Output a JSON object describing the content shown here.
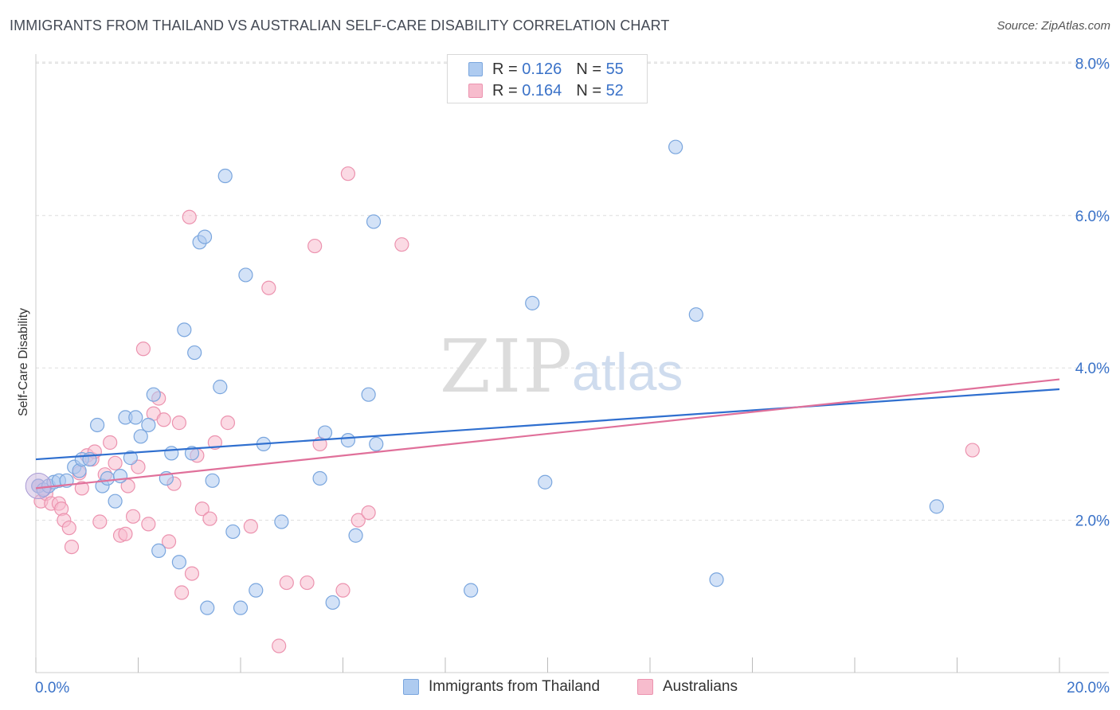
{
  "title": "IMMIGRANTS FROM THAILAND VS AUSTRALIAN SELF-CARE DISABILITY CORRELATION CHART",
  "source": "Source: ZipAtlas.com",
  "watermark": {
    "zip": "ZIP",
    "atlas": "atlas"
  },
  "legend_top": [
    {
      "r_label": "R =",
      "r_value": "0.126",
      "n_label": "N =",
      "n_value": "55"
    },
    {
      "r_label": "R =",
      "r_value": "0.164",
      "n_label": "N =",
      "n_value": "52"
    }
  ],
  "legend_bottom": [
    "Immigrants from Thailand",
    "Australians"
  ],
  "colors": {
    "blue_fill": "#aecbf0",
    "blue_stroke": "#7aa6de",
    "blue_line": "#2f6fcf",
    "pink_fill": "#f7bccd",
    "pink_stroke": "#ec93af",
    "pink_line": "#e0709a",
    "tick_text": "#3a72c8",
    "grid": "#dddddd"
  },
  "chart_data": {
    "type": "scatter",
    "title": "IMMIGRANTS FROM THAILAND VS AUSTRALIAN SELF-CARE DISABILITY CORRELATION CHART",
    "xlabel": "",
    "ylabel": "Self-Care Disability",
    "xlim": [
      0,
      20
    ],
    "ylim": [
      0,
      8.3
    ],
    "x_tick_labels": [
      "0.0%",
      "20.0%"
    ],
    "y_ticks": [
      2,
      4,
      6,
      8
    ],
    "y_tick_labels": [
      "2.0%",
      "4.0%",
      "6.0%",
      "8.0%"
    ],
    "grid": "horizontal dashed",
    "legend_placement": "top-center",
    "series": [
      {
        "name": "Immigrants from Thailand",
        "color": "#aecbf0",
        "trend": {
          "x": [
            0,
            20
          ],
          "y": [
            2.8,
            3.72
          ]
        },
        "points": [
          [
            0.05,
            2.45
          ],
          [
            0.15,
            2.4
          ],
          [
            0.25,
            2.45
          ],
          [
            0.35,
            2.5
          ],
          [
            0.45,
            2.52
          ],
          [
            0.6,
            2.52
          ],
          [
            0.75,
            2.7
          ],
          [
            0.85,
            2.65
          ],
          [
            0.9,
            2.8
          ],
          [
            1.05,
            2.8
          ],
          [
            1.2,
            3.25
          ],
          [
            1.3,
            2.45
          ],
          [
            1.4,
            2.55
          ],
          [
            1.55,
            2.25
          ],
          [
            1.65,
            2.58
          ],
          [
            1.75,
            3.35
          ],
          [
            1.85,
            2.82
          ],
          [
            1.95,
            3.35
          ],
          [
            2.05,
            3.1
          ],
          [
            2.2,
            3.25
          ],
          [
            2.3,
            3.65
          ],
          [
            2.4,
            1.6
          ],
          [
            2.55,
            2.55
          ],
          [
            2.65,
            2.88
          ],
          [
            2.8,
            1.45
          ],
          [
            2.9,
            4.5
          ],
          [
            3.05,
            2.88
          ],
          [
            3.1,
            4.2
          ],
          [
            3.2,
            5.65
          ],
          [
            3.3,
            5.72
          ],
          [
            3.35,
            0.85
          ],
          [
            3.45,
            2.52
          ],
          [
            3.6,
            3.75
          ],
          [
            3.7,
            6.52
          ],
          [
            3.85,
            1.85
          ],
          [
            4.0,
            0.85
          ],
          [
            4.1,
            5.22
          ],
          [
            4.3,
            1.08
          ],
          [
            4.45,
            3.0
          ],
          [
            4.8,
            1.98
          ],
          [
            5.55,
            2.55
          ],
          [
            5.65,
            3.15
          ],
          [
            5.8,
            0.92
          ],
          [
            6.1,
            3.05
          ],
          [
            6.25,
            1.8
          ],
          [
            6.5,
            3.65
          ],
          [
            6.6,
            5.92
          ],
          [
            6.65,
            3.0
          ],
          [
            8.5,
            1.08
          ],
          [
            9.7,
            4.85
          ],
          [
            9.95,
            2.5
          ],
          [
            12.5,
            6.9
          ],
          [
            12.9,
            4.7
          ],
          [
            13.3,
            1.22
          ],
          [
            17.6,
            2.18
          ]
        ]
      },
      {
        "name": "Australians",
        "color": "#f7bccd",
        "trend": {
          "x": [
            0,
            20
          ],
          "y": [
            2.42,
            3.85
          ]
        },
        "points": [
          [
            0.05,
            2.45
          ],
          [
            0.1,
            2.25
          ],
          [
            0.2,
            2.35
          ],
          [
            0.3,
            2.22
          ],
          [
            0.45,
            2.22
          ],
          [
            0.5,
            2.15
          ],
          [
            0.55,
            2.0
          ],
          [
            0.65,
            1.9
          ],
          [
            0.7,
            1.65
          ],
          [
            0.85,
            2.62
          ],
          [
            0.9,
            2.42
          ],
          [
            1.0,
            2.85
          ],
          [
            1.1,
            2.8
          ],
          [
            1.15,
            2.9
          ],
          [
            1.25,
            1.98
          ],
          [
            1.35,
            2.6
          ],
          [
            1.45,
            3.02
          ],
          [
            1.55,
            2.75
          ],
          [
            1.65,
            1.8
          ],
          [
            1.75,
            1.82
          ],
          [
            1.8,
            2.45
          ],
          [
            1.9,
            2.05
          ],
          [
            2.0,
            2.7
          ],
          [
            2.1,
            4.25
          ],
          [
            2.2,
            1.95
          ],
          [
            2.3,
            3.4
          ],
          [
            2.4,
            3.6
          ],
          [
            2.5,
            3.32
          ],
          [
            2.6,
            1.72
          ],
          [
            2.7,
            2.48
          ],
          [
            2.8,
            3.28
          ],
          [
            2.85,
            1.05
          ],
          [
            3.0,
            5.98
          ],
          [
            3.05,
            1.3
          ],
          [
            3.15,
            2.85
          ],
          [
            3.25,
            2.15
          ],
          [
            3.4,
            2.02
          ],
          [
            3.5,
            3.02
          ],
          [
            3.75,
            3.28
          ],
          [
            4.2,
            1.92
          ],
          [
            4.55,
            5.05
          ],
          [
            4.75,
            0.35
          ],
          [
            4.9,
            1.18
          ],
          [
            5.3,
            1.18
          ],
          [
            5.45,
            5.6
          ],
          [
            5.55,
            3.0
          ],
          [
            6.0,
            1.08
          ],
          [
            6.1,
            6.55
          ],
          [
            6.3,
            2.0
          ],
          [
            6.5,
            2.1
          ],
          [
            7.15,
            5.62
          ],
          [
            18.3,
            2.92
          ]
        ]
      }
    ]
  }
}
